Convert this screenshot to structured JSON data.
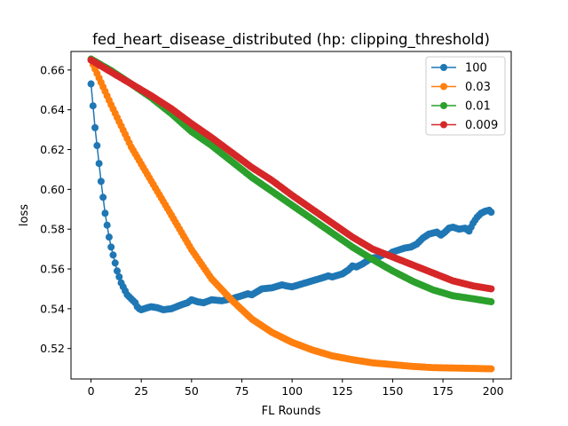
{
  "chart_data": {
    "type": "line",
    "title": "fed_heart_disease_distributed (hp: clipping_threshold)",
    "xlabel": "FL Rounds",
    "ylabel": "loss",
    "xlim": [
      -9.95,
      208.95
    ],
    "ylim": [
      0.5047,
      0.6693
    ],
    "xticks": [
      0,
      25,
      50,
      75,
      100,
      125,
      150,
      175,
      200
    ],
    "yticks": [
      0.52,
      0.54,
      0.56,
      0.58,
      0.6,
      0.62,
      0.64,
      0.66
    ],
    "ytick_labels": [
      "0.52",
      "0.54",
      "0.56",
      "0.58",
      "0.60",
      "0.62",
      "0.64",
      "0.66"
    ],
    "grid": false,
    "legend": "top-right",
    "marker": "circle",
    "series": [
      {
        "name": "100",
        "color": "#1f77b4",
        "points": [
          [
            0,
            0.653
          ],
          [
            1,
            0.642
          ],
          [
            2,
            0.631
          ],
          [
            3,
            0.622
          ],
          [
            4,
            0.613
          ],
          [
            5,
            0.604
          ],
          [
            6,
            0.596
          ],
          [
            7,
            0.588
          ],
          [
            8,
            0.582
          ],
          [
            9,
            0.576
          ],
          [
            10,
            0.571
          ],
          [
            11,
            0.567
          ],
          [
            12,
            0.563
          ],
          [
            13,
            0.559
          ],
          [
            14,
            0.556
          ],
          [
            15,
            0.553
          ],
          [
            16,
            0.551
          ],
          [
            17,
            0.549
          ],
          [
            18,
            0.547
          ],
          [
            19,
            0.546
          ],
          [
            20,
            0.545
          ],
          [
            21,
            0.544
          ],
          [
            22,
            0.543
          ],
          [
            23,
            0.541
          ],
          [
            24,
            0.54
          ],
          [
            25,
            0.5395
          ],
          [
            28,
            0.5405
          ],
          [
            30,
            0.541
          ],
          [
            33,
            0.5405
          ],
          [
            36,
            0.5395
          ],
          [
            40,
            0.54
          ],
          [
            45,
            0.542
          ],
          [
            48,
            0.543
          ],
          [
            50,
            0.5445
          ],
          [
            53,
            0.5435
          ],
          [
            56,
            0.543
          ],
          [
            60,
            0.5445
          ],
          [
            65,
            0.544
          ],
          [
            70,
            0.545
          ],
          [
            75,
            0.5465
          ],
          [
            78,
            0.5475
          ],
          [
            80,
            0.547
          ],
          [
            85,
            0.55
          ],
          [
            90,
            0.5505
          ],
          [
            95,
            0.552
          ],
          [
            97,
            0.5515
          ],
          [
            100,
            0.551
          ],
          [
            105,
            0.5525
          ],
          [
            110,
            0.554
          ],
          [
            115,
            0.5555
          ],
          [
            118,
            0.5565
          ],
          [
            120,
            0.556
          ],
          [
            125,
            0.5575
          ],
          [
            128,
            0.5595
          ],
          [
            130,
            0.5615
          ],
          [
            132,
            0.561
          ],
          [
            135,
            0.5625
          ],
          [
            138,
            0.5645
          ],
          [
            140,
            0.5655
          ],
          [
            143,
            0.566
          ],
          [
            146,
            0.5675
          ],
          [
            148,
            0.567
          ],
          [
            150,
            0.5685
          ],
          [
            153,
            0.5695
          ],
          [
            156,
            0.5705
          ],
          [
            159,
            0.571
          ],
          [
            162,
            0.5725
          ],
          [
            165,
            0.5755
          ],
          [
            168,
            0.5775
          ],
          [
            170,
            0.578
          ],
          [
            172,
            0.5785
          ],
          [
            174,
            0.577
          ],
          [
            176,
            0.5785
          ],
          [
            178,
            0.5805
          ],
          [
            180,
            0.581
          ],
          [
            183,
            0.58
          ],
          [
            186,
            0.5805
          ],
          [
            188,
            0.579
          ],
          [
            190,
            0.583
          ],
          [
            192,
            0.586
          ],
          [
            194,
            0.588
          ],
          [
            196,
            0.589
          ],
          [
            198,
            0.5895
          ],
          [
            199,
            0.5885
          ]
        ]
      },
      {
        "name": "0.03",
        "color": "#ff7f0e",
        "points": [
          [
            0,
            0.665
          ],
          [
            10,
            0.6425
          ],
          [
            20,
            0.6213
          ],
          [
            30,
            0.6041
          ],
          [
            40,
            0.587
          ],
          [
            50,
            0.5697
          ],
          [
            60,
            0.555
          ],
          [
            70,
            0.5443
          ],
          [
            80,
            0.5348
          ],
          [
            90,
            0.5281
          ],
          [
            100,
            0.5231
          ],
          [
            110,
            0.5193
          ],
          [
            120,
            0.5163
          ],
          [
            130,
            0.5144
          ],
          [
            140,
            0.5128
          ],
          [
            150,
            0.5119
          ],
          [
            160,
            0.511
          ],
          [
            170,
            0.5104
          ],
          [
            180,
            0.5102
          ],
          [
            190,
            0.51
          ],
          [
            199,
            0.5098
          ]
        ]
      },
      {
        "name": "0.01",
        "color": "#2ca02c",
        "points": [
          [
            0,
            0.6655
          ],
          [
            10,
            0.6597
          ],
          [
            20,
            0.653
          ],
          [
            30,
            0.646
          ],
          [
            40,
            0.638
          ],
          [
            50,
            0.629
          ],
          [
            60,
            0.622
          ],
          [
            70,
            0.614
          ],
          [
            80,
            0.606
          ],
          [
            90,
            0.599
          ],
          [
            100,
            0.592
          ],
          [
            110,
            0.585
          ],
          [
            120,
            0.578
          ],
          [
            130,
            0.571
          ],
          [
            140,
            0.5648
          ],
          [
            150,
            0.559
          ],
          [
            160,
            0.5538
          ],
          [
            170,
            0.5495
          ],
          [
            180,
            0.5465
          ],
          [
            190,
            0.545
          ],
          [
            199,
            0.5435
          ]
        ]
      },
      {
        "name": "0.009",
        "color": "#d62728",
        "points": [
          [
            0,
            0.665
          ],
          [
            10,
            0.659
          ],
          [
            20,
            0.653
          ],
          [
            30,
            0.647
          ],
          [
            40,
            0.6405
          ],
          [
            50,
            0.633
          ],
          [
            60,
            0.626
          ],
          [
            70,
            0.6185
          ],
          [
            80,
            0.611
          ],
          [
            90,
            0.6045
          ],
          [
            100,
            0.597
          ],
          [
            110,
            0.59
          ],
          [
            120,
            0.583
          ],
          [
            130,
            0.576
          ],
          [
            140,
            0.57
          ],
          [
            150,
            0.566
          ],
          [
            160,
            0.562
          ],
          [
            170,
            0.558
          ],
          [
            180,
            0.554
          ],
          [
            190,
            0.5515
          ],
          [
            199,
            0.55
          ]
        ]
      }
    ]
  }
}
